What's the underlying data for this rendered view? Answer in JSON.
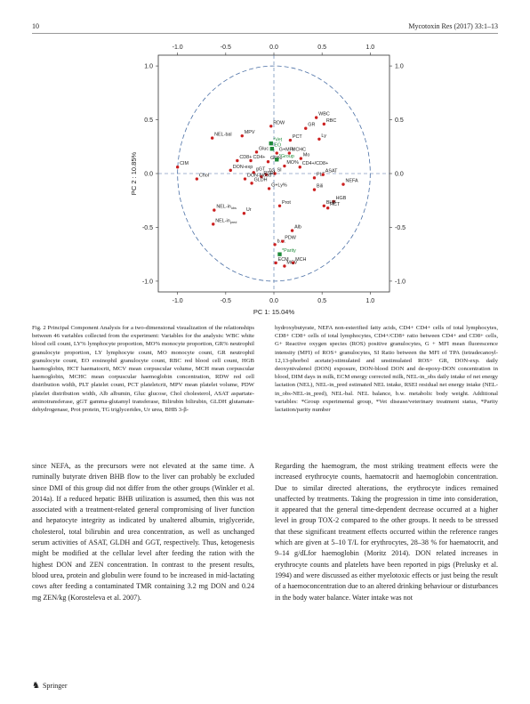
{
  "header": {
    "page_number": "10",
    "journal": "Mycotoxin Res (2017) 33:1–13"
  },
  "chart_data": {
    "type": "scatter",
    "xlabel": "PC 1: 15.04%",
    "ylabel": "PC 2 : 10.85%",
    "xlim": [
      -1.2,
      1.2
    ],
    "ylim": [
      -1.1,
      1.1
    ],
    "xticks": [
      "-1.0",
      "-0.5",
      "0.0",
      "0.5",
      "1.0"
    ],
    "yticks": [
      "1.0",
      "0.5",
      "0.0",
      "-0.5",
      "-1.0"
    ],
    "unit_circle": true,
    "colors": {
      "active": "#cc1f1f",
      "supplementary": "#1e8a3a",
      "circle": "#4a6fa5",
      "axes": "#333333"
    },
    "points": [
      {
        "label": "WBC",
        "x": 0.44,
        "y": 0.52,
        "group": "active"
      },
      {
        "label": "RBC",
        "x": 0.52,
        "y": 0.46,
        "group": "active"
      },
      {
        "label": "GR",
        "x": 0.33,
        "y": 0.42,
        "group": "active"
      },
      {
        "label": "Ly",
        "x": 0.47,
        "y": 0.32,
        "group": "active"
      },
      {
        "label": "RDW",
        "x": -0.03,
        "y": 0.44,
        "group": "active"
      },
      {
        "label": "MPV",
        "x": -0.33,
        "y": 0.35,
        "group": "active"
      },
      {
        "label": "NEL-bal",
        "x": -0.64,
        "y": 0.33,
        "group": "active"
      },
      {
        "label": "PCT",
        "x": 0.17,
        "y": 0.31,
        "group": "active"
      },
      {
        "label": "Gluc",
        "x": -0.18,
        "y": 0.2,
        "group": "active"
      },
      {
        "label": "G+MFI",
        "x": 0.03,
        "y": 0.19,
        "group": "active"
      },
      {
        "label": "MCHC",
        "x": 0.16,
        "y": 0.19,
        "group": "active"
      },
      {
        "label": "Mo",
        "x": 0.28,
        "y": 0.14,
        "group": "active"
      },
      {
        "label": "CD8+",
        "x": -0.38,
        "y": 0.12,
        "group": "active"
      },
      {
        "label": "CD4+",
        "x": -0.24,
        "y": 0.12,
        "group": "active"
      },
      {
        "label": "GR%",
        "x": -0.06,
        "y": 0.11,
        "group": "active"
      },
      {
        "label": "MO%",
        "x": 0.11,
        "y": 0.07,
        "group": "active"
      },
      {
        "label": "CD4+/CD8+",
        "x": 0.27,
        "y": 0.06,
        "group": "active"
      },
      {
        "label": "CIM",
        "x": -1.0,
        "y": 0.06,
        "group": "active"
      },
      {
        "label": "DON-exp",
        "x": -0.45,
        "y": 0.03,
        "group": "active"
      },
      {
        "label": "gGT",
        "x": -0.21,
        "y": 0.01,
        "group": "active"
      },
      {
        "label": "TG",
        "x": -0.08,
        "y": -0.01,
        "group": "active"
      },
      {
        "label": "SI",
        "x": 0.01,
        "y": 0.0,
        "group": "active"
      },
      {
        "label": "RSEI",
        "x": -0.13,
        "y": -0.03,
        "group": "active"
      },
      {
        "label": "PLT",
        "x": 0.42,
        "y": -0.04,
        "group": "active"
      },
      {
        "label": "ASAT",
        "x": 0.51,
        "y": -0.01,
        "group": "active"
      },
      {
        "label": "Chol",
        "x": -0.8,
        "y": -0.05,
        "group": "active"
      },
      {
        "label": "DON-blood",
        "x": -0.3,
        "y": -0.05,
        "group": "active"
      },
      {
        "label": "GLDH",
        "x": -0.23,
        "y": -0.09,
        "group": "active"
      },
      {
        "label": "G+Ly%",
        "x": -0.05,
        "y": -0.14,
        "group": "active"
      },
      {
        "label": "NEFA",
        "x": 0.72,
        "y": -0.1,
        "group": "active"
      },
      {
        "label": "Bili",
        "x": 0.42,
        "y": -0.15,
        "group": "active"
      },
      {
        "label": "HGB",
        "x": 0.62,
        "y": -0.26,
        "group": "active"
      },
      {
        "label": "BHB",
        "x": 0.52,
        "y": -0.3,
        "group": "active"
      },
      {
        "label": "HCT",
        "x": 0.56,
        "y": -0.32,
        "group": "active"
      },
      {
        "label": "Prot",
        "x": 0.06,
        "y": -0.3,
        "group": "active"
      },
      {
        "label": "Ur",
        "x": -0.31,
        "y": -0.37,
        "group": "active"
      },
      {
        "label": "NEL-in_obs",
        "x": -0.62,
        "y": -0.34,
        "group": "active"
      },
      {
        "label": "NEL-in_pred",
        "x": -0.63,
        "y": -0.47,
        "group": "active"
      },
      {
        "label": "Alb",
        "x": 0.19,
        "y": -0.53,
        "group": "active"
      },
      {
        "label": "b.w.",
        "x": 0.01,
        "y": -0.66,
        "group": "active"
      },
      {
        "label": "PDW",
        "x": 0.09,
        "y": -0.63,
        "group": "active"
      },
      {
        "label": "ECM",
        "x": 0.02,
        "y": -0.83,
        "group": "active"
      },
      {
        "label": "MCH",
        "x": 0.2,
        "y": -0.83,
        "group": "active"
      },
      {
        "label": "MCV",
        "x": 0.11,
        "y": -0.86,
        "group": "active"
      },
      {
        "label": "*Vet",
        "x": -0.03,
        "y": 0.28,
        "group": "supplementary"
      },
      {
        "label": "EO",
        "x": -0.02,
        "y": 0.23,
        "group": "supplementary"
      },
      {
        "label": "*Group",
        "x": 0.03,
        "y": 0.13,
        "group": "supplementary"
      },
      {
        "label": "*Parity",
        "x": 0.06,
        "y": -0.75,
        "group": "supplementary"
      }
    ]
  },
  "figure_caption": {
    "left": "Fig. 2 Principal Component Analysis for a two-dimensional visualization of the relationships between 46 variables collected from the experiment: Variables for the analysis: WBC white blood cell count, LY% lymphocyte proportion, MO% monocyte proportion, GR% neutrophil granulocyte proportion, LY lymphocyte count, MO monocyte count, GR neutrophil granulocyte count, EO eosinophil granulocyte count, RBC red blood cell count, HGB haemoglobin, HCT haematocrit, MCV mean corpuscular volume, MCH mean corpuscular haemoglobin, MCHC mean corpuscular haemoglobin concentration, RDW red cell distribution width, PLT platelet count, PCT plateletcrit, MPV mean platelet volume, PDW platelet distribution width, Alb albumin, Gluc glucose, Chol cholesterol, ASAT aspartate-aminotransferase, gGT gamma-glutamyl transferase, Bilirubin bilirubin, GLDH glutamate-dehydrogenase, Prot protein, TG triglycerides, Ur urea, BHB 3-β-",
    "right": "hydroxybutyrate, NEFA non-esterified fatty acids, CD4+ CD4+ cells of total lymphocytes, CD8+ CD8+ cells of total lymphocytes, CD4+/CD8+ ratio between CD4+ and CD8+ cells, G+ Reactive oxygen species (ROS) positive granulocytes, G + MFI mean fluorescence intensity (MFI) of ROS+ granulocytes, SI Ratio between the MFI of TPA (tetradecanoyl-12,13-phorbol acetate)-stimulated and unstimulated ROS+ GR, DON-exp. daily deoxynivalenol (DON) exposure, DON-blood DON and de-epoxy-DON concentration in blood, DIM days in milk, ECM energy corrected milk, NEL-in_obs daily intake of net energy lactation (NEL), NEL-in_pred estimated NEL intake, RSEI residual net energy intake (NEL-in_obs-NEL-in_pred), NEL-bal. NEL balance, b.w. metabolic body weight. Additional variables: *Group experimental group, *Vet disease/veterinary treatment status, *Parity lactation/parity number"
  },
  "body": {
    "left": "since NEFA, as the precursors were not elevated at the same time. A ruminally butyrate driven BHB flow to the liver can probably be excluded since DMI of this group did not differ from the other groups (Winkler et al. 2014a). If a reduced hepatic BHB utilization is assumed, then this was not associated with a treatment-related general compromising of liver function and hepatocyte integrity as indicated by unaltered albumin, triglyceride, cholesterol, total bilirubin and urea concentration, as well as unchanged serum activities of ASAT, GLDH and GGT, respectively. Thus, ketogenesis might be modified at the cellular level after feeding the ration with the highest DON and ZEN concentration. In contrast to the present results, blood urea, protein and globulin were found to be increased in mid-lactating cows after feeding a contaminated TMR containing 3.2 mg DON and 0.24 mg ZEN/kg (Korosteleva et al. 2007).",
    "right": "Regarding the haemogram, the most striking treatment effects were the increased erythrocyte counts, haematocrit and haemoglobin concentration. Due to similar directed alterations, the erythrocyte indices remained unaffected by treatments. Taking the progression in time into consideration, it appeared that the general time-dependent decrease occurred at a higher level in group TOX-2 compared to the other groups. It needs to be stressed that these significant treatment effects occurred within the reference ranges which are given at 5–10 T/L for erythrocytes, 28–38 % for haematocrit, and 9–14 g/dLfor haemoglobin (Moritz 2014). DON related increases in erythrocyte counts and platelets have been reported in pigs (Prelusky et al. 1994) and were discussed as either myelotoxic effects or just being the result of a haemoconcentration due to an altered drinking behaviour or disturbances in the body water balance. Water intake was not"
  },
  "footer": {
    "publisher": "Springer",
    "icon": "springer-horse-icon"
  }
}
